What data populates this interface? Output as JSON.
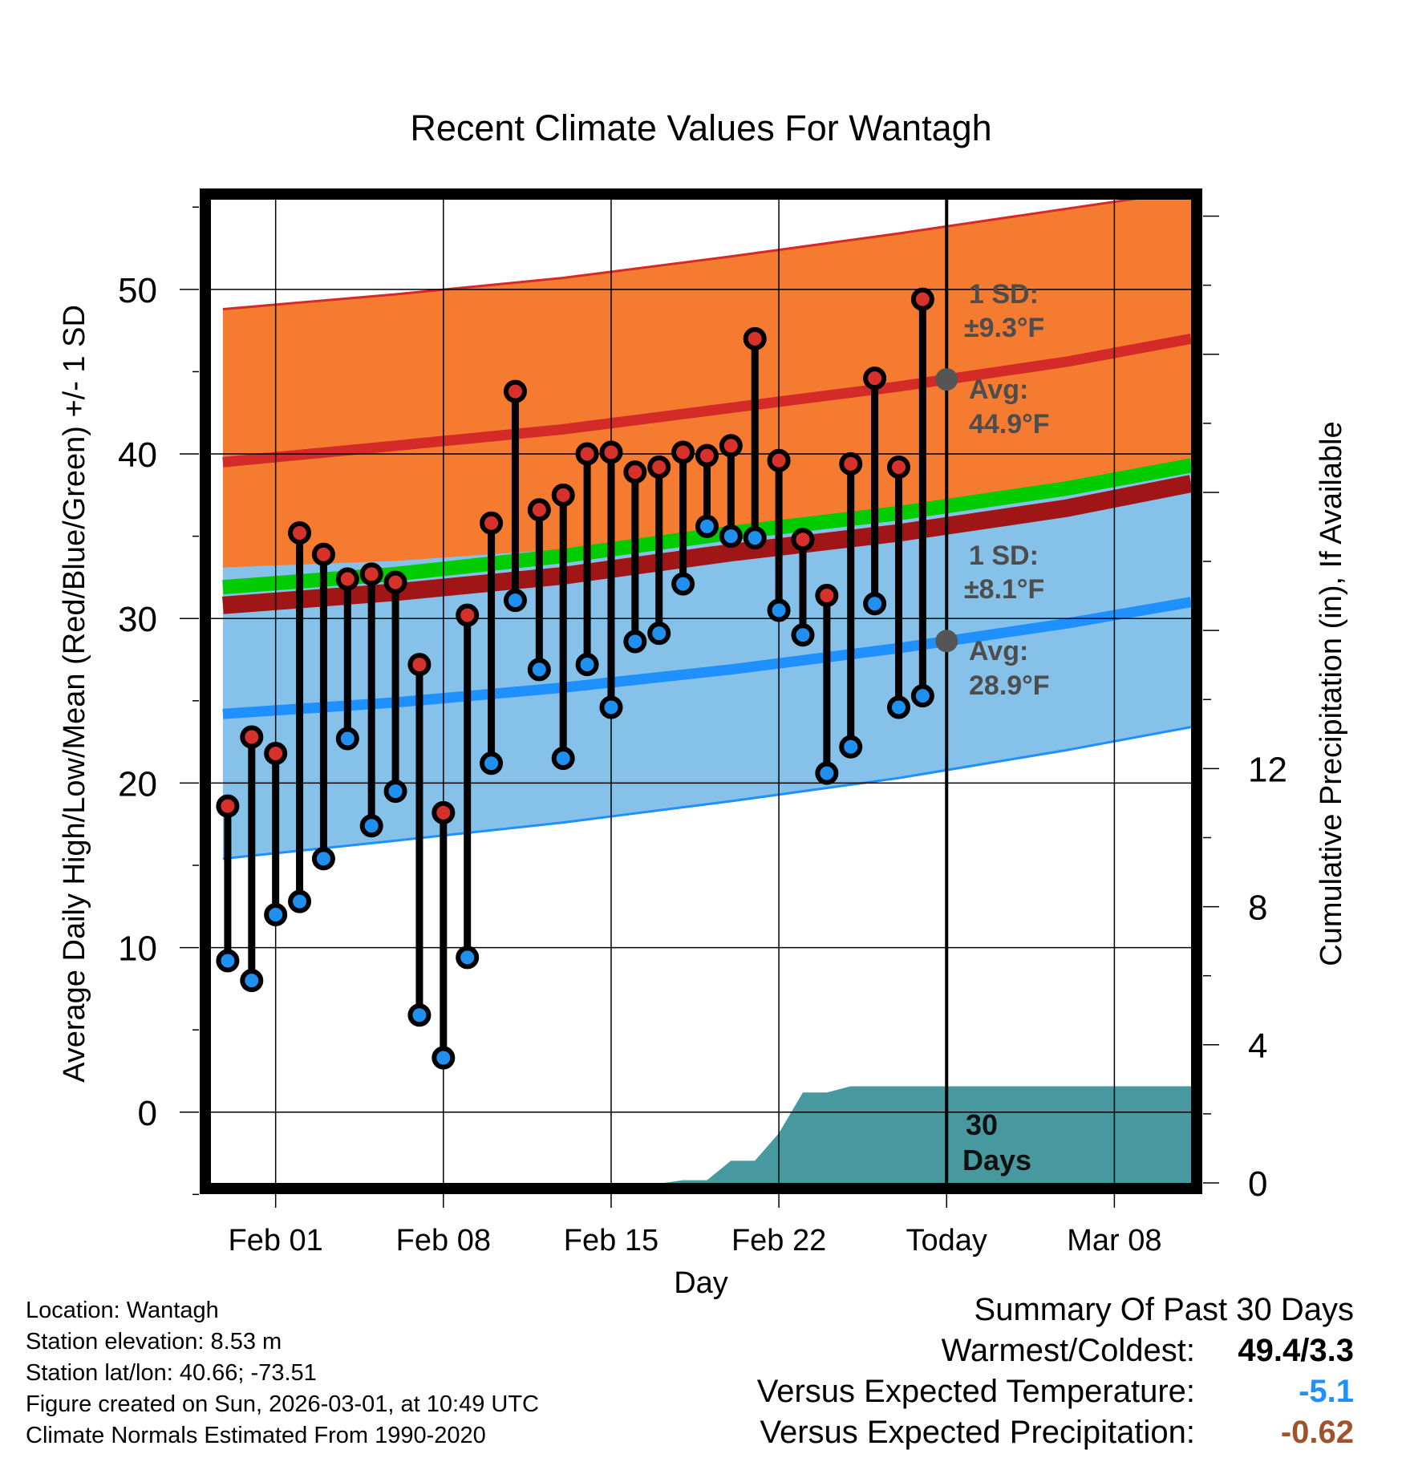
{
  "chart_data": {
    "type": "line",
    "title": "Recent Climate Values For Wantagh",
    "xlabel": "Day",
    "ylabel_left": "Average Daily High/Low/Mean (Red/Blue/Green) +/- 1 SD",
    "ylabel_right": "Cumulative Precipitation (in), If Available",
    "x_tick_labels": [
      "Feb 01",
      "Feb 08",
      "Feb 15",
      "Feb 22",
      "Today",
      "Mar 08"
    ],
    "x_tick_days": [
      1,
      8,
      15,
      22,
      29,
      36
    ],
    "xlim_days": [
      -1.7,
      39.2
    ],
    "ylim_left": [
      -4.3,
      55.5
    ],
    "y_ticks_left": [
      0,
      10,
      20,
      30,
      40,
      50
    ],
    "ylim_right": [
      0,
      28.5
    ],
    "y_ticks_right": [
      0,
      4,
      8,
      12
    ],
    "today_day": 29,
    "normals": {
      "days": [
        -1.2,
        6,
        13,
        20,
        27,
        34,
        39.2
      ],
      "high_upper": [
        48.8,
        49.7,
        50.7,
        52.0,
        53.4,
        54.9,
        56.0
      ],
      "high_mean": [
        39.5,
        40.5,
        41.5,
        42.8,
        44.1,
        45.6,
        47.0
      ],
      "high_lower": [
        30.8,
        31.6,
        32.6,
        34.0,
        35.2,
        36.7,
        38.2
      ],
      "mean": [
        31.9,
        32.7,
        33.8,
        35.2,
        36.4,
        37.9,
        39.3
      ],
      "low_upper": [
        33.1,
        33.5,
        34.2,
        35.2,
        36.4,
        37.9,
        39.3
      ],
      "low_mean": [
        24.2,
        24.9,
        25.8,
        26.9,
        28.2,
        29.7,
        31.0
      ],
      "low_lower": [
        15.4,
        16.5,
        17.6,
        18.9,
        20.3,
        22.0,
        23.4
      ]
    },
    "daily_days": [
      -1,
      0,
      1,
      2,
      3,
      4,
      5,
      6,
      7,
      8,
      9,
      10,
      11,
      12,
      13,
      14,
      15,
      16,
      17,
      18,
      19,
      20,
      21,
      22,
      23,
      24,
      25,
      26,
      27,
      28
    ],
    "daily_high": [
      18.6,
      22.8,
      21.8,
      35.2,
      33.9,
      32.4,
      32.7,
      32.2,
      27.2,
      18.2,
      30.2,
      35.8,
      43.8,
      36.6,
      37.5,
      40.0,
      40.1,
      38.9,
      39.2,
      40.1,
      39.9,
      40.5,
      47.0,
      39.6,
      34.8,
      31.4,
      39.4,
      44.6,
      39.2,
      49.4
    ],
    "daily_low": [
      9.2,
      8.0,
      12.0,
      12.8,
      15.4,
      22.7,
      17.4,
      19.5,
      5.9,
      3.3,
      9.4,
      21.2,
      31.1,
      26.9,
      21.5,
      27.2,
      24.6,
      28.6,
      29.1,
      32.1,
      35.6,
      35.0,
      34.9,
      30.5,
      29.0,
      20.6,
      22.2,
      30.9,
      24.6,
      25.3
    ],
    "precip_days": [
      17.2,
      18,
      19,
      20,
      21,
      22,
      23,
      24,
      25,
      26,
      39.2
    ],
    "precip_cum": [
      0.0,
      0.08,
      0.08,
      0.64,
      0.64,
      1.44,
      2.62,
      2.62,
      2.8,
      2.8,
      2.8
    ],
    "annotations": {
      "high_sd": "1 SD:",
      "high_sd_val": "±9.3°F",
      "high_avg": "Avg:",
      "high_avg_val": "44.9°F",
      "low_sd": "1 SD:",
      "low_sd_val": "±8.1°F",
      "low_avg": "Avg:",
      "low_avg_val": "28.9°F",
      "window_num": "30",
      "window_unit": "Days"
    },
    "colors": {
      "high_band": "#f47b2f",
      "high_line": "#d42a28",
      "low_band": "#85c1e8",
      "low_line": "#1e90ff",
      "mean_line": "#00cc00",
      "dark_red": "#a01515",
      "precip": "#48999f",
      "high_dot": "#d7312b",
      "low_dot": "#1f8ff0",
      "avg_marker": "#555555"
    }
  },
  "footer": {
    "location": "Location: Wantagh",
    "elevation": "Station elevation: 8.53 m",
    "latlon": "Station lat/lon: 40.66; -73.51",
    "created": "Figure created on Sun, 2026-03-01, at 10:49 UTC",
    "normals": "Climate Normals Estimated From 1990-2020"
  },
  "summary": {
    "title": "Summary Of Past 30 Days",
    "warm_cold_label": "Warmest/Coldest:",
    "warm_cold_value": "49.4/3.3",
    "temp_label": "Versus Expected Temperature:",
    "temp_value": "-5.1",
    "temp_color": "#1e90ff",
    "precip_label": "Versus Expected Precipitation:",
    "precip_value": "-0.62",
    "precip_color": "#a0522d"
  }
}
